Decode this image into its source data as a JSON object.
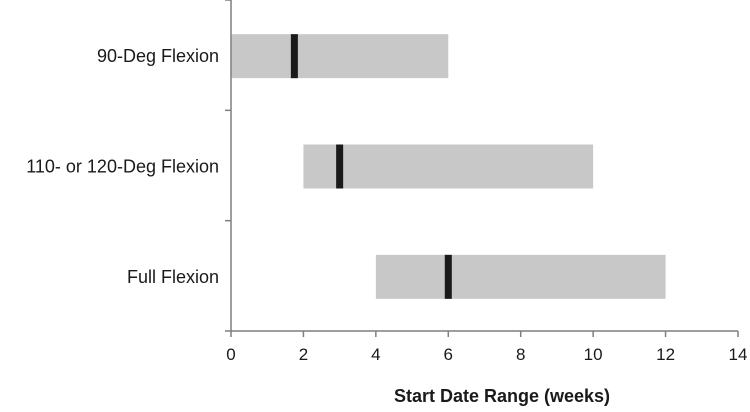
{
  "chart_data": {
    "type": "bar",
    "orientation": "horizontal",
    "title": "",
    "xlabel": "Start Date Range (weeks)",
    "ylabel": "",
    "xlim": [
      0,
      14
    ],
    "xticks": [
      0,
      2,
      4,
      6,
      8,
      10,
      12,
      14
    ],
    "grid": false,
    "legend": "none",
    "categories": [
      "90-Deg Flexion",
      "110- or 120-Deg Flexion",
      "Full Flexion"
    ],
    "ranges": [
      {
        "start": 0,
        "end": 6,
        "marker": 1.75
      },
      {
        "start": 2,
        "end": 10,
        "marker": 3
      },
      {
        "start": 4,
        "end": 12,
        "marker": 6
      }
    ],
    "colors": {
      "range_bar": "#c8c8c8",
      "marker": "#1a1a1a",
      "axis": "#7f7f7f"
    }
  }
}
